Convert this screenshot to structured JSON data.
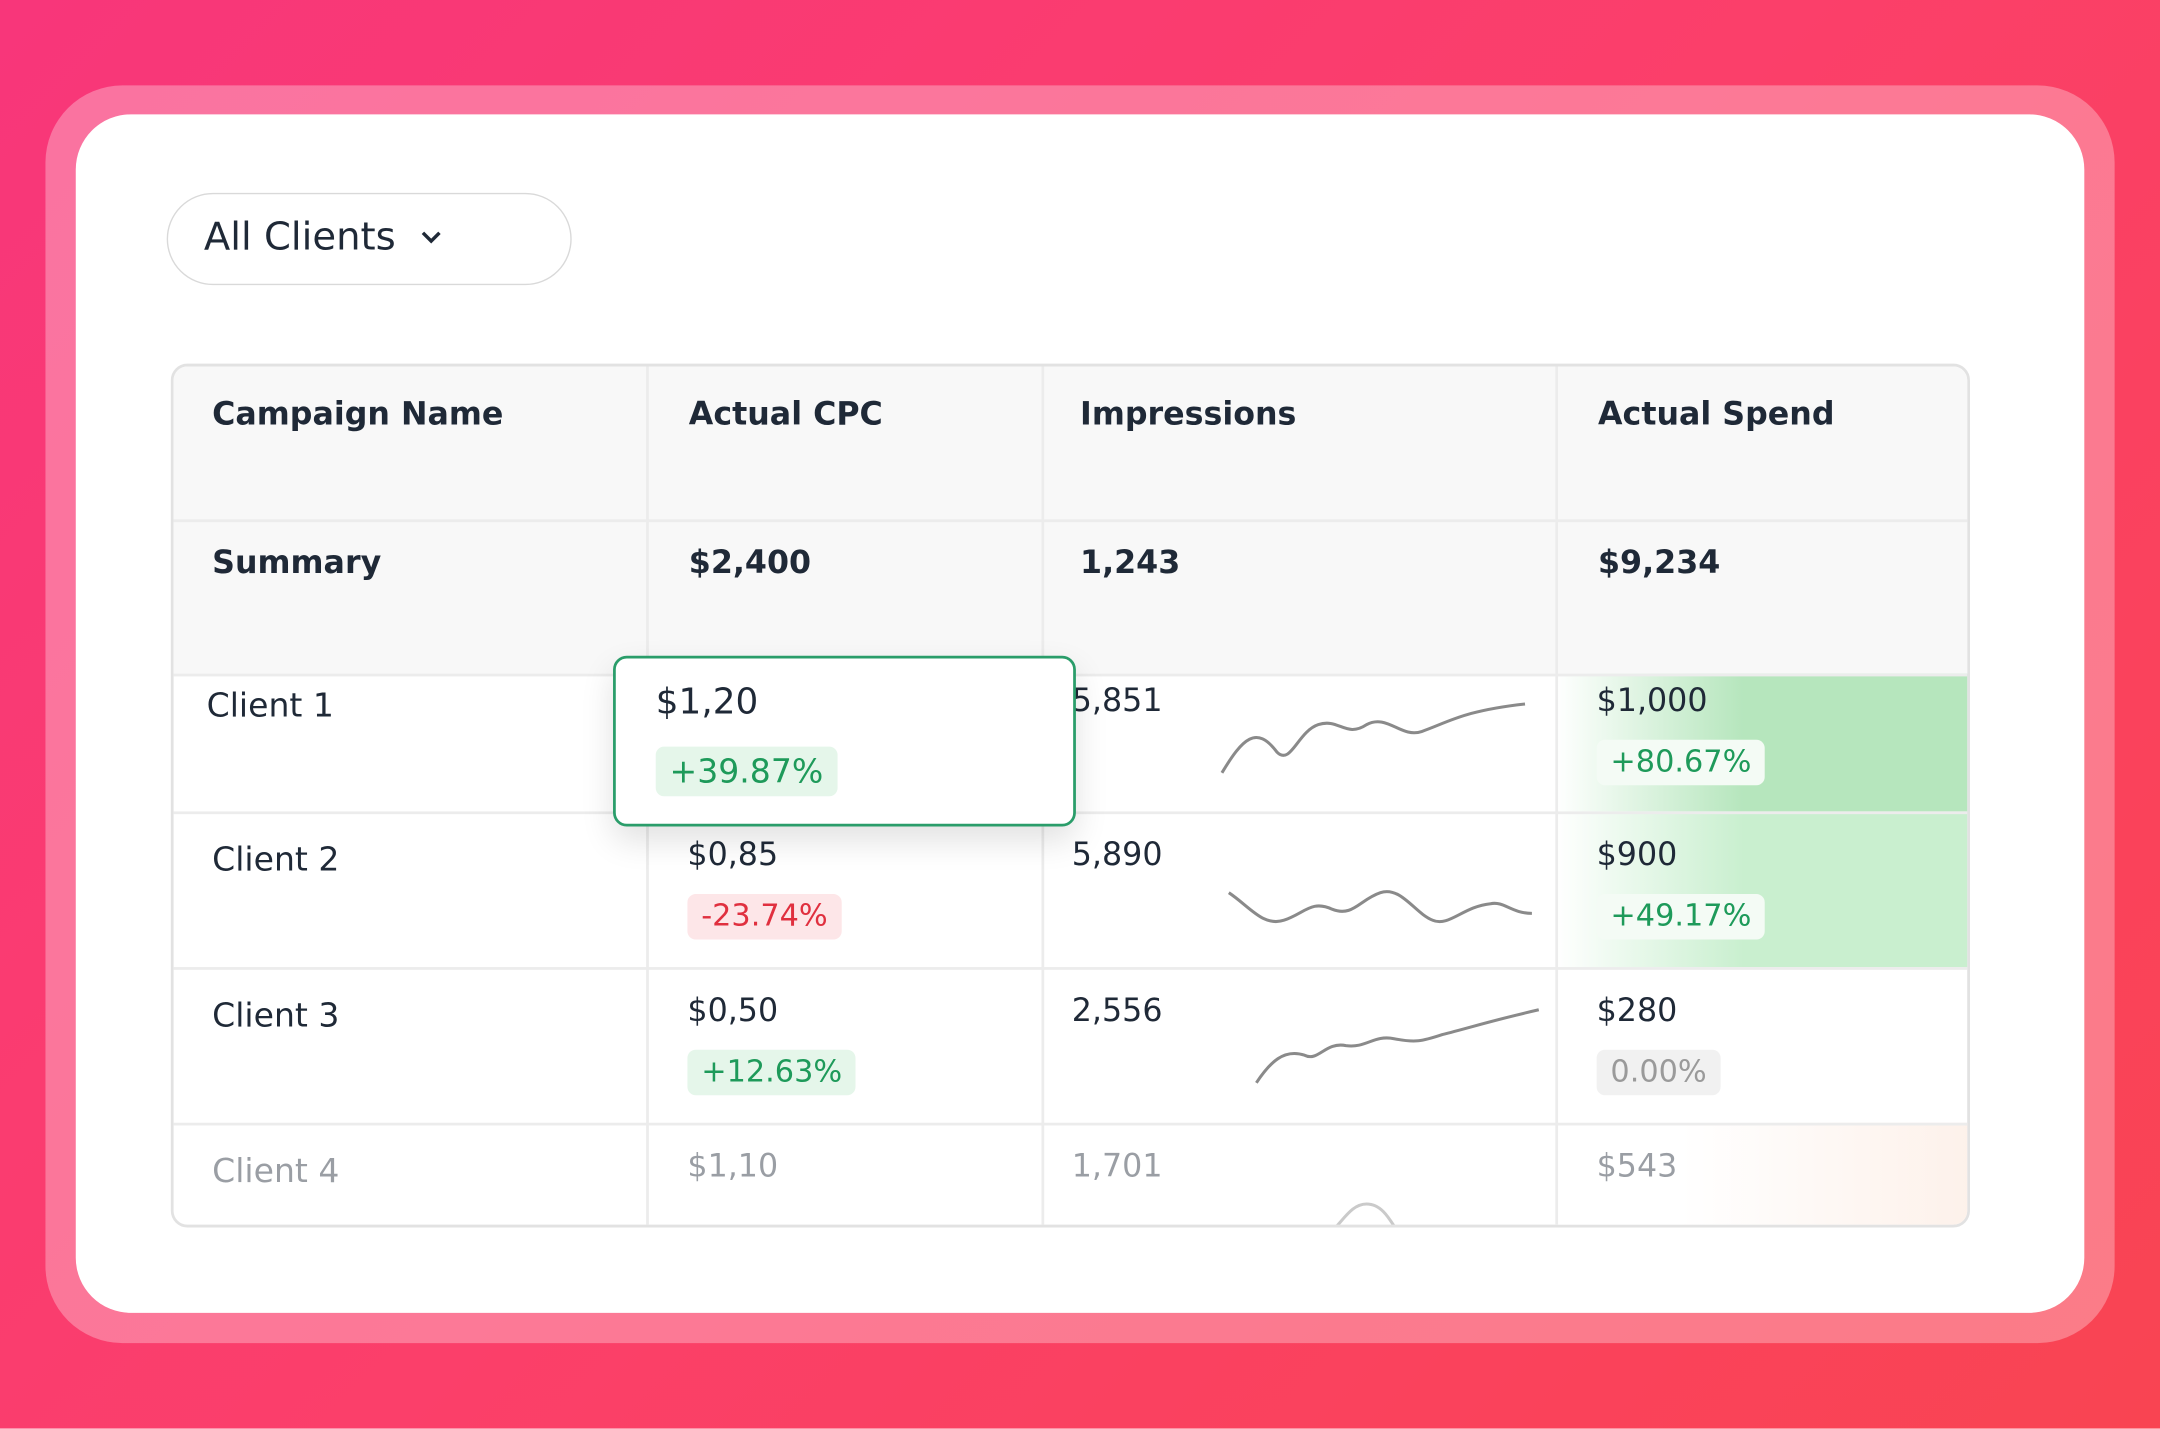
{
  "filter": {
    "label": "All Clients"
  },
  "table": {
    "headers": [
      "Campaign Name",
      "Actual CPC",
      "Impressions",
      "Actual Spend"
    ],
    "summary": [
      "Summary",
      "$2,400",
      "1,243",
      "$9,234"
    ],
    "rows": [
      {
        "name": "Client 1",
        "cpc": "$1,20",
        "cpc_change": "+39.87%",
        "impressions": "5,851",
        "spend": "$1,000",
        "spend_change": "+80.67%"
      },
      {
        "name": "Client 2",
        "cpc": "$0,85",
        "cpc_change": "-23.74%",
        "impressions": "5,890",
        "spend": "$900",
        "spend_change": "+49.17%"
      },
      {
        "name": "Client 3",
        "cpc": "$0,50",
        "cpc_change": "+12.63%",
        "impressions": "2,556",
        "spend": "$280",
        "spend_change": "0.00%"
      },
      {
        "name": "Client 4",
        "cpc": "$1,10",
        "impressions": "1,701",
        "spend": "$543"
      }
    ]
  }
}
